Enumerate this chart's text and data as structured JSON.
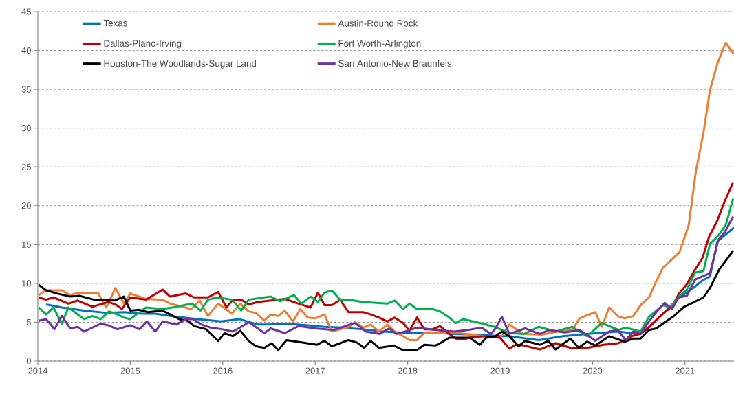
{
  "chart_data": {
    "type": "line",
    "xlim": [
      2014,
      2021.53
    ],
    "ylim": [
      0,
      45
    ],
    "xticks": [
      2014,
      2015,
      2016,
      2017,
      2018,
      2019,
      2020,
      2021
    ],
    "yticks": [
      0,
      5,
      10,
      15,
      20,
      25,
      30,
      35,
      40,
      45
    ],
    "grid": "y",
    "legend": "top",
    "marker": "none",
    "line_style": "solid",
    "series": [
      {
        "name": "Texas",
        "color": "#0070c0",
        "x": [
          2014.09,
          2014.26,
          2014.5,
          2014.75,
          2014.93,
          2015.12,
          2015.27,
          2015.5,
          2015.73,
          2015.98,
          2016.18,
          2016.38,
          2016.5,
          2016.7,
          2016.92,
          2017.1,
          2017.3,
          2017.5,
          2017.75,
          2018.0,
          2018.25,
          2018.5,
          2018.75,
          2019.0,
          2019.1,
          2019.42,
          2019.68,
          2019.94,
          2020.27,
          2020.52,
          2020.6,
          2020.78,
          2020.93,
          2021.1,
          2021.18,
          2021.27,
          2021.35,
          2021.53
        ],
        "values": [
          7.3,
          6.9,
          6.5,
          6.2,
          6.3,
          6.1,
          6.1,
          5.7,
          5.4,
          5.1,
          5.4,
          4.7,
          4.7,
          4.8,
          4.6,
          4.4,
          4.3,
          4.1,
          3.8,
          3.6,
          3.7,
          3.5,
          3.4,
          3.2,
          3.2,
          2.7,
          3.2,
          3.5,
          3.8,
          3.5,
          4.2,
          6.3,
          8.1,
          9.5,
          10.3,
          10.9,
          15.4,
          17.2
        ]
      },
      {
        "name": "Austin-Round Rock",
        "color": "#ed7d31",
        "x": [
          2014.01,
          2014.09,
          2014.26,
          2014.35,
          2014.43,
          2014.65,
          2014.74,
          2014.84,
          2014.93,
          2015.0,
          2015.17,
          2015.35,
          2015.43,
          2015.66,
          2015.75,
          2015.84,
          2015.95,
          2016.1,
          2016.19,
          2016.28,
          2016.36,
          2016.45,
          2016.52,
          2016.6,
          2016.67,
          2016.76,
          2016.84,
          2016.92,
          2017.0,
          2017.1,
          2017.18,
          2017.27,
          2017.35,
          2017.43,
          2017.52,
          2017.6,
          2017.69,
          2017.78,
          2017.86,
          2017.95,
          2018.02,
          2018.1,
          2018.18,
          2018.35,
          2018.5,
          2018.75,
          2019.0,
          2019.1,
          2019.25,
          2019.45,
          2019.62,
          2019.78,
          2019.86,
          2019.94,
          2020.03,
          2020.1,
          2020.18,
          2020.28,
          2020.35,
          2020.44,
          2020.52,
          2020.61,
          2020.69,
          2020.76,
          2020.94,
          2021.04,
          2021.12,
          2021.2,
          2021.27,
          2021.35,
          2021.44,
          2021.53
        ],
        "values": [
          8.5,
          9.1,
          9.1,
          8.5,
          8.8,
          8.8,
          6.9,
          9.4,
          7.4,
          8.7,
          8.0,
          7.9,
          7.4,
          6.7,
          7.8,
          5.8,
          7.4,
          6.1,
          7.4,
          6.4,
          6.2,
          5.2,
          6.0,
          5.8,
          6.5,
          5.1,
          6.7,
          5.6,
          5.5,
          6.0,
          3.8,
          4.1,
          4.3,
          5.0,
          4.3,
          4.7,
          3.8,
          4.7,
          3.8,
          3.2,
          2.7,
          2.7,
          3.6,
          3.6,
          3.7,
          3.3,
          3.0,
          4.7,
          3.5,
          3.4,
          3.8,
          4.0,
          5.5,
          5.9,
          6.3,
          4.4,
          6.9,
          5.7,
          5.5,
          5.8,
          7.2,
          8.2,
          10.3,
          12.0,
          14.0,
          17.5,
          24.6,
          29.4,
          34.9,
          38.3,
          41.0,
          39.5
        ]
      },
      {
        "name": "Dallas-Plano-Irving",
        "color": "#c00000",
        "x": [
          2014.01,
          2014.09,
          2014.17,
          2014.33,
          2014.43,
          2014.59,
          2014.76,
          2014.84,
          2014.91,
          2015.0,
          2015.17,
          2015.35,
          2015.43,
          2015.6,
          2015.69,
          2015.84,
          2015.95,
          2016.04,
          2016.11,
          2016.2,
          2016.28,
          2016.38,
          2016.52,
          2016.67,
          2016.82,
          2016.95,
          2017.03,
          2017.1,
          2017.18,
          2017.27,
          2017.36,
          2017.52,
          2017.6,
          2017.69,
          2017.78,
          2017.86,
          2017.95,
          2018.02,
          2018.1,
          2018.18,
          2018.27,
          2018.35,
          2018.44,
          2018.52,
          2018.6,
          2018.7,
          2018.85,
          2019.0,
          2019.1,
          2019.17,
          2019.26,
          2019.43,
          2019.6,
          2019.76,
          2019.94,
          2020.12,
          2020.28,
          2020.42,
          2020.52,
          2020.61,
          2020.69,
          2020.78,
          2020.86,
          2020.93,
          2021.02,
          2021.11,
          2021.19,
          2021.26,
          2021.35,
          2021.43,
          2021.52
        ],
        "values": [
          8.2,
          7.9,
          8.2,
          7.4,
          7.8,
          7.0,
          7.6,
          7.3,
          6.7,
          8.2,
          7.9,
          9.2,
          8.3,
          8.7,
          8.2,
          8.2,
          8.9,
          6.9,
          7.9,
          7.9,
          7.3,
          7.6,
          7.8,
          8.0,
          7.4,
          6.9,
          8.8,
          7.2,
          7.2,
          7.9,
          6.3,
          6.3,
          6.0,
          5.6,
          5.1,
          5.6,
          4.9,
          3.9,
          5.6,
          4.1,
          4.1,
          4.5,
          3.6,
          2.9,
          2.8,
          3.1,
          3.2,
          3.0,
          1.6,
          2.1,
          2.0,
          1.5,
          2.3,
          1.7,
          1.7,
          2.1,
          2.3,
          3.2,
          3.5,
          4.4,
          5.3,
          6.3,
          7.0,
          8.6,
          9.9,
          11.8,
          13.3,
          16.0,
          18.1,
          20.6,
          23.0
        ]
      },
      {
        "name": "Fort Worth-Arlington",
        "color": "#00b050",
        "x": [
          2014.01,
          2014.09,
          2014.17,
          2014.26,
          2014.33,
          2014.5,
          2014.59,
          2014.68,
          2014.77,
          2014.86,
          2014.93,
          2015.0,
          2015.17,
          2015.35,
          2015.5,
          2015.67,
          2015.76,
          2015.84,
          2015.94,
          2016.1,
          2016.2,
          2016.28,
          2016.45,
          2016.52,
          2016.62,
          2016.77,
          2016.85,
          2016.95,
          2017.03,
          2017.1,
          2017.18,
          2017.27,
          2017.36,
          2017.52,
          2017.78,
          2017.86,
          2017.95,
          2018.02,
          2018.1,
          2018.27,
          2018.35,
          2018.44,
          2018.52,
          2018.6,
          2018.78,
          2018.94,
          2019.1,
          2019.26,
          2019.42,
          2019.6,
          2019.78,
          2019.94,
          2020.1,
          2020.28,
          2020.36,
          2020.52,
          2020.61,
          2020.76,
          2020.84,
          2020.94,
          2021.02,
          2021.11,
          2021.2,
          2021.27,
          2021.35,
          2021.44,
          2021.52
        ],
        "values": [
          6.9,
          6.0,
          6.9,
          4.8,
          6.9,
          5.4,
          5.8,
          5.4,
          6.4,
          6.0,
          5.6,
          5.4,
          6.9,
          6.7,
          7.0,
          7.4,
          6.5,
          7.9,
          8.2,
          7.9,
          6.5,
          7.9,
          8.2,
          8.3,
          7.7,
          8.5,
          7.4,
          8.3,
          7.6,
          8.8,
          9.1,
          7.9,
          7.9,
          7.6,
          7.4,
          7.8,
          6.7,
          7.4,
          6.7,
          6.7,
          6.4,
          5.7,
          4.9,
          5.4,
          4.9,
          4.4,
          3.6,
          3.5,
          4.4,
          3.8,
          4.4,
          3.2,
          4.9,
          4.0,
          4.3,
          3.8,
          5.7,
          7.2,
          6.9,
          8.4,
          9.2,
          11.4,
          11.6,
          15.1,
          16.0,
          17.5,
          20.9
        ]
      },
      {
        "name": "Houston-The Woodlands-Sugar Land",
        "color": "#000000",
        "x": [
          2014.01,
          2014.09,
          2014.21,
          2014.35,
          2014.45,
          2014.61,
          2014.83,
          2014.93,
          2015.0,
          2015.1,
          2015.19,
          2015.35,
          2015.43,
          2015.53,
          2015.62,
          2015.69,
          2015.82,
          2015.95,
          2016.02,
          2016.11,
          2016.19,
          2016.28,
          2016.36,
          2016.45,
          2016.53,
          2016.6,
          2016.69,
          2016.85,
          2017.02,
          2017.1,
          2017.18,
          2017.36,
          2017.45,
          2017.53,
          2017.6,
          2017.69,
          2017.85,
          2017.95,
          2018.1,
          2018.18,
          2018.3,
          2018.35,
          2018.45,
          2018.67,
          2018.78,
          2018.85,
          2018.95,
          2019.02,
          2019.1,
          2019.2,
          2019.27,
          2019.43,
          2019.52,
          2019.6,
          2019.76,
          2019.85,
          2019.94,
          2020.03,
          2020.18,
          2020.35,
          2020.44,
          2020.52,
          2020.61,
          2020.69,
          2020.77,
          2020.88,
          2020.99,
          2021.1,
          2021.2,
          2021.27,
          2021.37,
          2021.52
        ],
        "values": [
          9.8,
          9.1,
          8.7,
          8.3,
          8.4,
          7.9,
          7.8,
          8.3,
          6.5,
          6.6,
          6.3,
          6.5,
          6.0,
          5.4,
          5.2,
          4.5,
          4.1,
          2.6,
          3.6,
          3.2,
          3.9,
          2.6,
          1.9,
          1.7,
          2.3,
          1.4,
          2.7,
          2.4,
          2.1,
          2.6,
          1.9,
          2.7,
          2.4,
          1.7,
          2.6,
          1.7,
          2.0,
          1.4,
          1.4,
          2.1,
          2.0,
          2.3,
          3.0,
          3.0,
          2.1,
          3.0,
          3.2,
          3.8,
          3.2,
          1.9,
          2.6,
          2.1,
          2.6,
          1.5,
          2.9,
          1.7,
          2.5,
          2.0,
          3.2,
          2.5,
          2.9,
          2.9,
          4.0,
          4.2,
          4.9,
          5.8,
          7.0,
          7.6,
          8.2,
          9.4,
          11.8,
          14.2
        ]
      },
      {
        "name": "San Antonio-New Braunfels",
        "color": "#7030a0",
        "x": [
          2014.01,
          2014.09,
          2014.18,
          2014.26,
          2014.35,
          2014.43,
          2014.5,
          2014.68,
          2014.76,
          2014.86,
          2015.0,
          2015.1,
          2015.18,
          2015.27,
          2015.35,
          2015.5,
          2015.6,
          2015.68,
          2015.77,
          2015.87,
          2015.99,
          2016.11,
          2016.2,
          2016.28,
          2016.38,
          2016.45,
          2016.52,
          2016.67,
          2016.82,
          2017.0,
          2017.2,
          2017.43,
          2017.55,
          2017.7,
          2017.8,
          2017.88,
          2018.0,
          2018.1,
          2018.3,
          2018.5,
          2018.65,
          2018.8,
          2018.9,
          2018.95,
          2019.02,
          2019.1,
          2019.27,
          2019.43,
          2019.53,
          2019.7,
          2019.86,
          2020.03,
          2020.18,
          2020.27,
          2020.36,
          2020.44,
          2020.52,
          2020.61,
          2020.69,
          2020.78,
          2020.86,
          2020.93,
          2021.02,
          2021.11,
          2021.19,
          2021.27,
          2021.36,
          2021.43,
          2021.52
        ],
        "values": [
          5.2,
          5.4,
          4.1,
          5.8,
          4.2,
          4.4,
          3.8,
          4.8,
          4.6,
          4.1,
          4.6,
          4.1,
          5.1,
          3.8,
          5.1,
          4.7,
          5.4,
          5.4,
          4.7,
          4.3,
          4.1,
          3.8,
          4.4,
          5.0,
          4.2,
          3.6,
          4.2,
          3.6,
          4.5,
          4.2,
          4.0,
          4.9,
          3.8,
          3.5,
          4.2,
          3.5,
          3.9,
          4.3,
          4.0,
          3.8,
          4.0,
          4.3,
          3.5,
          4.2,
          5.7,
          3.5,
          4.2,
          3.5,
          4.0,
          3.7,
          4.0,
          2.6,
          3.8,
          4.0,
          2.7,
          3.8,
          3.5,
          5.1,
          6.3,
          7.5,
          6.7,
          8.2,
          8.4,
          10.5,
          10.9,
          11.3,
          15.6,
          16.6,
          18.6
        ]
      }
    ]
  }
}
